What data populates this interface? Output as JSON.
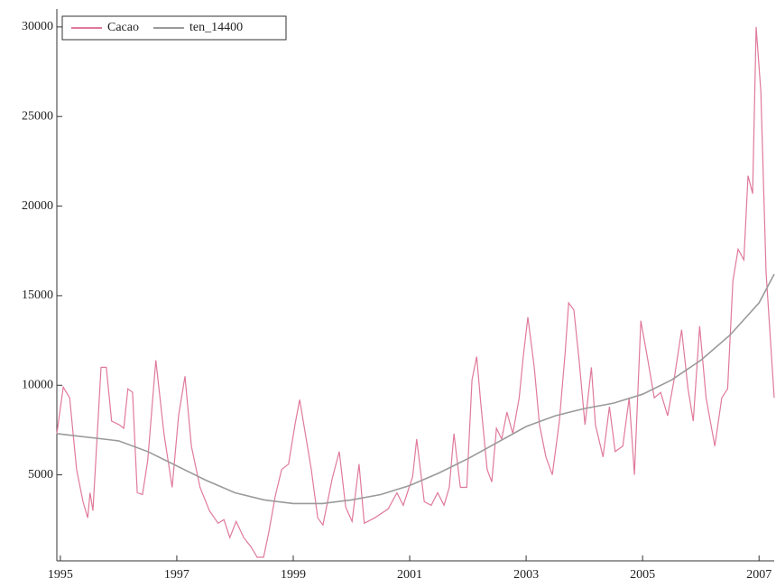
{
  "chart_data": {
    "type": "line",
    "xlim": [
      1994.94,
      2007.26
    ],
    "xticks": [
      1995,
      1997,
      1999,
      2001,
      2003,
      2005,
      2007
    ],
    "ylim": [
      200,
      31000
    ],
    "yticks": [
      5000,
      10000,
      15000,
      20000,
      25000,
      30000
    ],
    "legend": "upper left",
    "series": [
      {
        "name": "Cacao",
        "color": "#e07a9a",
        "x": [
          1994.94,
          1995.05,
          1995.16,
          1995.28,
          1995.39,
          1995.47,
          1995.51,
          1995.56,
          1995.7,
          1995.79,
          1995.88,
          1996.01,
          1996.09,
          1996.16,
          1996.24,
          1996.32,
          1996.41,
          1996.5,
          1996.64,
          1996.78,
          1996.92,
          1997.03,
          1997.14,
          1997.25,
          1997.4,
          1997.56,
          1997.71,
          1997.81,
          1997.91,
          1998.02,
          1998.15,
          1998.27,
          1998.38,
          1998.49,
          1998.58,
          1998.69,
          1998.8,
          1998.92,
          1999.03,
          1999.11,
          1999.31,
          1999.42,
          1999.51,
          1999.67,
          1999.79,
          1999.9,
          2000.01,
          2000.13,
          2000.22,
          2000.4,
          2000.63,
          2000.78,
          2000.89,
          2001.05,
          2001.12,
          2001.25,
          2001.37,
          2001.48,
          2001.59,
          2001.68,
          2001.76,
          2001.87,
          2001.98,
          2002.07,
          2002.15,
          2002.22,
          2002.33,
          2002.41,
          2002.49,
          2002.58,
          2002.67,
          2002.77,
          2002.88,
          2002.95,
          2003.03,
          2003.14,
          2003.23,
          2003.34,
          2003.45,
          2003.57,
          2003.67,
          2003.73,
          2003.82,
          2003.91,
          2004.01,
          2004.12,
          2004.19,
          2004.32,
          2004.43,
          2004.53,
          2004.66,
          2004.77,
          2004.86,
          2004.97,
          2005.09,
          2005.2,
          2005.31,
          2005.43,
          2005.54,
          2005.67,
          2005.78,
          2005.87,
          2005.98,
          2006.09,
          2006.24,
          2006.36,
          2006.46,
          2006.55,
          2006.64,
          2006.74,
          2006.81,
          2006.89,
          2006.95,
          2007.03,
          2007.12,
          2007.26
        ],
        "values": [
          7300,
          9900,
          9300,
          5300,
          3500,
          2600,
          4000,
          3000,
          11000,
          11000,
          8000,
          7800,
          7600,
          9800,
          9600,
          4000,
          3900,
          5800,
          11400,
          7300,
          4300,
          8300,
          10500,
          6600,
          4300,
          3000,
          2300,
          2500,
          1500,
          2400,
          1500,
          1000,
          400,
          400,
          1800,
          3800,
          5300,
          5600,
          7800,
          9200,
          5300,
          2600,
          2200,
          4800,
          6300,
          3200,
          2400,
          5600,
          2300,
          2600,
          3100,
          4000,
          3300,
          4900,
          7000,
          3500,
          3300,
          4000,
          3300,
          4300,
          7300,
          4300,
          4300,
          10300,
          11600,
          9000,
          5300,
          4600,
          7600,
          7000,
          8500,
          7300,
          9300,
          11600,
          13800,
          11000,
          7800,
          6000,
          5000,
          8000,
          11800,
          14600,
          14200,
          11400,
          7800,
          11000,
          7800,
          6000,
          8800,
          6300,
          6600,
          9300,
          5000,
          13600,
          11400,
          9300,
          9600,
          8300,
          10300,
          13100,
          9800,
          8000,
          13300,
          9300,
          6600,
          9300,
          9800,
          15800,
          17600,
          17000,
          21700,
          20700,
          30000,
          26400,
          16300,
          9300
        ]
      },
      {
        "name": "ten_14400",
        "color": "#9a9a9a",
        "x": [
          1994.94,
          1996,
          1996.5,
          1997,
          1997.5,
          1998,
          1998.5,
          1999,
          1999.5,
          2000,
          2000.5,
          2001,
          2001.5,
          2002,
          2002.5,
          2003,
          2003.5,
          2004,
          2004.5,
          2005,
          2005.5,
          2006,
          2006.5,
          2007,
          2007.26
        ],
        "values": [
          7300,
          6900,
          6300,
          5500,
          4700,
          4000,
          3600,
          3400,
          3400,
          3600,
          3900,
          4400,
          5100,
          5900,
          6800,
          7700,
          8300,
          8700,
          9000,
          9500,
          10300,
          11400,
          12800,
          14600,
          16200
        ]
      }
    ]
  }
}
